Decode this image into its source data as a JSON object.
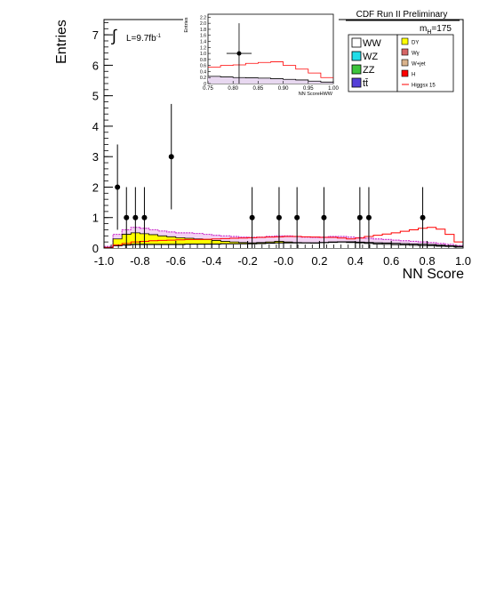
{
  "chart_data": {
    "type": "histogram",
    "experiment_label": "CDF Run II Preliminary",
    "mass_label_prefix": "m",
    "mass_label_sub": "H",
    "mass_label_suffix": "=175",
    "lumi_integral": "∫",
    "lumi_text": "L=9.7fb",
    "lumi_sup": "-1",
    "xlabel": "NN Score",
    "ylabel": "Entries",
    "xlim": [
      -1.0,
      1.0
    ],
    "ylim": [
      0,
      7.5
    ],
    "x_ticks": [
      "-1.0",
      "-0.8",
      "-0.6",
      "-0.4",
      "-0.2",
      "-0.0",
      "0.2",
      "0.4",
      "0.6",
      "0.8",
      "1.0"
    ],
    "x_tick_values": [
      -1.0,
      -0.8,
      -0.6,
      -0.4,
      -0.2,
      0.0,
      0.2,
      0.4,
      0.6,
      0.8,
      1.0
    ],
    "y_ticks": [
      "0",
      "1",
      "2",
      "3",
      "4",
      "5",
      "6",
      "7"
    ],
    "y_tick_values": [
      0,
      1,
      2,
      3,
      4,
      5,
      6,
      7
    ],
    "bin_edges": [
      -1.0,
      -0.95,
      -0.9,
      -0.85,
      -0.8,
      -0.75,
      -0.7,
      -0.65,
      -0.6,
      -0.55,
      -0.5,
      -0.45,
      -0.4,
      -0.35,
      -0.3,
      -0.25,
      -0.2,
      -0.15,
      -0.1,
      -0.05,
      0.0,
      0.05,
      0.1,
      0.15,
      0.2,
      0.25,
      0.3,
      0.35,
      0.4,
      0.45,
      0.5,
      0.55,
      0.6,
      0.65,
      0.7,
      0.75,
      0.8,
      0.85,
      0.9,
      0.95,
      1.0
    ],
    "stack_totals": [
      0.05,
      0.45,
      0.6,
      0.68,
      0.65,
      0.6,
      0.56,
      0.53,
      0.5,
      0.5,
      0.48,
      0.45,
      0.42,
      0.4,
      0.38,
      0.36,
      0.35,
      0.36,
      0.38,
      0.4,
      0.4,
      0.38,
      0.36,
      0.35,
      0.36,
      0.38,
      0.38,
      0.36,
      0.34,
      0.32,
      0.3,
      0.28,
      0.26,
      0.24,
      0.22,
      0.2,
      0.18,
      0.15,
      0.12,
      0.08
    ],
    "dy_top": [
      0.02,
      0.3,
      0.45,
      0.5,
      0.47,
      0.44,
      0.4,
      0.37,
      0.34,
      0.32,
      0.3,
      0.28,
      0.25,
      0.22,
      0.2,
      0.18,
      0.17,
      0.18,
      0.2,
      0.22,
      0.2,
      0.18,
      0.17,
      0.16,
      0.18,
      0.2,
      0.2,
      0.18,
      0.17,
      0.15,
      0.13,
      0.12,
      0.11,
      0.1,
      0.09,
      0.08,
      0.07,
      0.06,
      0.05,
      0.03
    ],
    "ww_top": [
      0.01,
      0.08,
      0.1,
      0.12,
      0.12,
      0.12,
      0.12,
      0.12,
      0.12,
      0.13,
      0.13,
      0.13,
      0.13,
      0.14,
      0.14,
      0.14,
      0.14,
      0.15,
      0.16,
      0.17,
      0.17,
      0.17,
      0.17,
      0.17,
      0.18,
      0.19,
      0.2,
      0.2,
      0.19,
      0.18,
      0.17,
      0.16,
      0.15,
      0.14,
      0.13,
      0.12,
      0.11,
      0.09,
      0.07,
      0.05
    ],
    "higgs_x15": [
      0.02,
      0.1,
      0.15,
      0.2,
      0.22,
      0.24,
      0.25,
      0.26,
      0.27,
      0.28,
      0.28,
      0.29,
      0.3,
      0.31,
      0.32,
      0.33,
      0.34,
      0.35,
      0.36,
      0.37,
      0.38,
      0.38,
      0.37,
      0.36,
      0.35,
      0.35,
      0.33,
      0.3,
      0.33,
      0.38,
      0.42,
      0.46,
      0.5,
      0.55,
      0.6,
      0.65,
      0.68,
      0.62,
      0.45,
      0.2
    ],
    "data_points": [
      {
        "x": -0.925,
        "y": 2,
        "err": 1.4
      },
      {
        "x": -0.875,
        "y": 1,
        "err": 1.0
      },
      {
        "x": -0.825,
        "y": 1,
        "err": 1.0
      },
      {
        "x": -0.775,
        "y": 1,
        "err": 1.0
      },
      {
        "x": -0.625,
        "y": 3,
        "err": 1.73
      },
      {
        "x": -0.175,
        "y": 1,
        "err": 1.0
      },
      {
        "x": -0.025,
        "y": 1,
        "err": 1.0
      },
      {
        "x": 0.075,
        "y": 1,
        "err": 1.0
      },
      {
        "x": 0.225,
        "y": 1,
        "err": 1.0
      },
      {
        "x": 0.425,
        "y": 1,
        "err": 1.0
      },
      {
        "x": 0.475,
        "y": 1,
        "err": 1.0
      },
      {
        "x": 0.775,
        "y": 1,
        "err": 1.0
      }
    ],
    "legend": [
      {
        "label": "WW",
        "color": "#ffffff"
      },
      {
        "label": "WZ",
        "color": "#22dde8"
      },
      {
        "label": "ZZ",
        "color": "#3cc43c"
      },
      {
        "label": "tt̄",
        "color": "#5540d8"
      },
      {
        "label": "DY",
        "color": "#ffff00"
      },
      {
        "label": "Wγ",
        "color": "#d66666"
      },
      {
        "label": "W+jet",
        "color": "#d9b38c"
      },
      {
        "label": "H",
        "color": "#ff0000"
      },
      {
        "label": "Higgsx 15",
        "color": "#ff0000",
        "line": true
      }
    ],
    "colors": {
      "dy": "#ffff00",
      "ww": "#ffffff",
      "higgs": "#ff0000",
      "total_band": "#cc33cc",
      "data": "#000000"
    },
    "inset": {
      "ylabel": "Entries",
      "xlabel": "NN ScoreHWW",
      "xlim": [
        0.75,
        1.0
      ],
      "ylim": [
        0,
        2.3
      ],
      "x_ticks": [
        "0.75",
        "0.80",
        "0.85",
        "0.90",
        "0.95",
        "1.00"
      ],
      "x_tick_values": [
        0.75,
        0.8,
        0.85,
        0.9,
        0.95,
        1.0
      ],
      "y_ticks": [
        "0",
        "0.2",
        "0.4",
        "0.6",
        "0.8",
        "1.0",
        "1.2",
        "1.4",
        "1.6",
        "1.8",
        "2.0",
        "2.2"
      ],
      "y_tick_values": [
        0,
        0.2,
        0.4,
        0.6,
        0.8,
        1.0,
        1.2,
        1.4,
        1.6,
        1.8,
        2.0,
        2.2
      ],
      "bin_edges": [
        0.75,
        0.775,
        0.8,
        0.825,
        0.85,
        0.875,
        0.9,
        0.925,
        0.95,
        0.975,
        1.0
      ],
      "higgs_x15": [
        0.55,
        0.6,
        0.62,
        0.67,
        0.7,
        0.72,
        0.6,
        0.48,
        0.35,
        0.2
      ],
      "bkg_total": [
        0.24,
        0.22,
        0.2,
        0.19,
        0.18,
        0.16,
        0.14,
        0.12,
        0.08,
        0.05
      ],
      "data_point": {
        "x": 0.812,
        "y": 1.0,
        "err": 1.0,
        "xerr": 0.025
      }
    }
  }
}
